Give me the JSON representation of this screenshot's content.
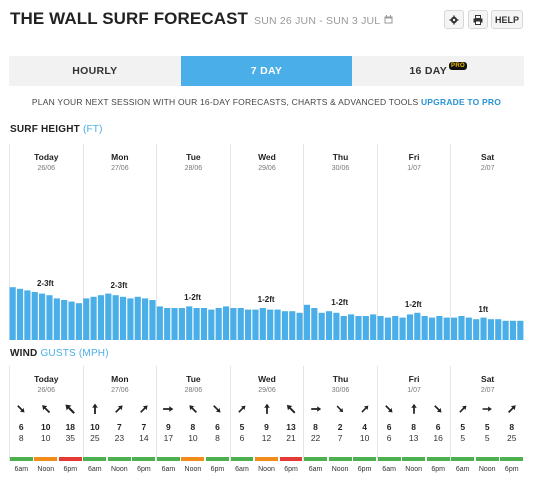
{
  "header": {
    "title": "THE WALL SURF FORECAST",
    "date_range": "SUN 26 JUN - SUN 3 JUL",
    "settings_icon": "gear-icon",
    "print_icon": "print-icon",
    "calendar_icon": "calendar-icon",
    "help_label": "HELP"
  },
  "tabs": [
    {
      "label": "HOURLY",
      "active": false
    },
    {
      "label": "7 DAY",
      "active": true
    },
    {
      "label": "16 DAY",
      "active": false,
      "badge": "PRO"
    }
  ],
  "promo": {
    "text": "PLAN YOUR NEXT SESSION WITH OUR 16-DAY FORECASTS, CHARTS & ADVANCED TOOLS ",
    "link": "UPGRADE TO PRO"
  },
  "surf": {
    "title": "SURF HEIGHT",
    "unit": "(FT)",
    "bar_color": "#4aaee8"
  },
  "wind": {
    "title": "WIND",
    "subtitle": "GUSTS (MPH)"
  },
  "days": [
    {
      "name": "Today",
      "date": "26/06",
      "surf_label": "2-3ft",
      "surf_levels": [
        0.33,
        0.32,
        0.31,
        0.3,
        0.29,
        0.28,
        0.26,
        0.25,
        0.24,
        0.23
      ],
      "wind": [
        {
          "time": "6am",
          "speed": "6",
          "gust": "8",
          "dir": 135,
          "status": "green"
        },
        {
          "time": "Noon",
          "speed": "10",
          "gust": "10",
          "dir": 315,
          "status": "orange"
        },
        {
          "time": "6pm",
          "speed": "18",
          "gust": "35",
          "dir": 315,
          "status": "red"
        }
      ]
    },
    {
      "name": "Mon",
      "date": "27/06",
      "surf_label": "2-3ft",
      "surf_levels": [
        0.26,
        0.27,
        0.28,
        0.29,
        0.28,
        0.27,
        0.26,
        0.27,
        0.26,
        0.25
      ],
      "wind": [
        {
          "time": "6am",
          "speed": "10",
          "gust": "25",
          "dir": 0,
          "status": "green"
        },
        {
          "time": "Noon",
          "speed": "7",
          "gust": "23",
          "dir": 45,
          "status": "green"
        },
        {
          "time": "6pm",
          "speed": "7",
          "gust": "14",
          "dir": 45,
          "status": "green"
        }
      ]
    },
    {
      "name": "Tue",
      "date": "28/06",
      "surf_label": "1-2ft",
      "surf_levels": [
        0.21,
        0.2,
        0.2,
        0.2,
        0.21,
        0.2,
        0.2,
        0.19,
        0.2,
        0.21
      ],
      "wind": [
        {
          "time": "6am",
          "speed": "9",
          "gust": "17",
          "dir": 90,
          "status": "green"
        },
        {
          "time": "Noon",
          "speed": "8",
          "gust": "10",
          "dir": 315,
          "status": "orange"
        },
        {
          "time": "6pm",
          "speed": "6",
          "gust": "8",
          "dir": 135,
          "status": "green"
        }
      ]
    },
    {
      "name": "Wed",
      "date": "29/06",
      "surf_label": "1-2ft",
      "surf_levels": [
        0.2,
        0.2,
        0.19,
        0.19,
        0.2,
        0.19,
        0.19,
        0.18,
        0.18,
        0.17
      ],
      "wind": [
        {
          "time": "6am",
          "speed": "5",
          "gust": "6",
          "dir": 45,
          "status": "green"
        },
        {
          "time": "Noon",
          "speed": "9",
          "gust": "12",
          "dir": 0,
          "status": "orange"
        },
        {
          "time": "6pm",
          "speed": "13",
          "gust": "21",
          "dir": 315,
          "status": "red"
        }
      ]
    },
    {
      "name": "Thu",
      "date": "30/06",
      "surf_label": "1-2ft",
      "surf_levels": [
        0.22,
        0.2,
        0.17,
        0.18,
        0.17,
        0.15,
        0.16,
        0.15,
        0.15,
        0.16
      ],
      "wind": [
        {
          "time": "6am",
          "speed": "8",
          "gust": "22",
          "dir": 90,
          "status": "green"
        },
        {
          "time": "Noon",
          "speed": "2",
          "gust": "7",
          "dir": 135,
          "status": "green"
        },
        {
          "time": "6pm",
          "speed": "4",
          "gust": "10",
          "dir": 45,
          "status": "green"
        }
      ]
    },
    {
      "name": "Fri",
      "date": "1/07",
      "surf_label": "1-2ft",
      "surf_levels": [
        0.15,
        0.14,
        0.15,
        0.14,
        0.16,
        0.17,
        0.15,
        0.14,
        0.15,
        0.14
      ],
      "wind": [
        {
          "time": "6am",
          "speed": "6",
          "gust": "6",
          "dir": 135,
          "status": "green"
        },
        {
          "time": "Noon",
          "speed": "8",
          "gust": "13",
          "dir": 0,
          "status": "green"
        },
        {
          "time": "6pm",
          "speed": "6",
          "gust": "16",
          "dir": 135,
          "status": "green"
        }
      ]
    },
    {
      "name": "Sat",
      "date": "2/07",
      "surf_label": "1ft",
      "surf_levels": [
        0.14,
        0.15,
        0.14,
        0.13,
        0.14,
        0.13,
        0.13,
        0.12,
        0.12,
        0.12
      ],
      "wind": [
        {
          "time": "6am",
          "speed": "5",
          "gust": "5",
          "dir": 45,
          "status": "green"
        },
        {
          "time": "Noon",
          "speed": "5",
          "gust": "5",
          "dir": 90,
          "status": "green"
        },
        {
          "time": "6pm",
          "speed": "8",
          "gust": "25",
          "dir": 45,
          "status": "green"
        }
      ]
    }
  ],
  "status_colors": {
    "green": "#4caf50",
    "orange": "#f08c1a",
    "red": "#e53935"
  }
}
